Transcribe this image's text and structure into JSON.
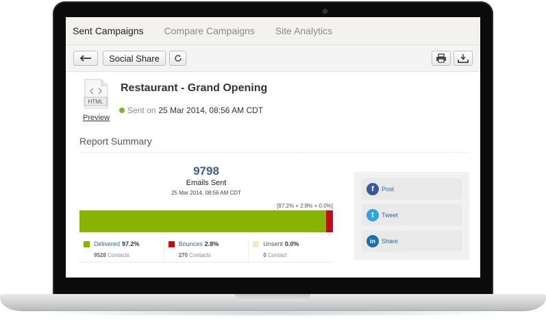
{
  "tabs": [
    {
      "label": "Sent Campaigns",
      "active": true
    },
    {
      "label": "Compare Campaigns",
      "active": false
    },
    {
      "label": "Site Analytics",
      "active": false
    }
  ],
  "toolbar": {
    "back_icon": "back-arrow-icon",
    "social_share_label": "Social Share",
    "refresh_icon": "refresh-icon",
    "print_icon": "printer-icon",
    "download_icon": "download-icon"
  },
  "campaign": {
    "file_icon_label": "HTML",
    "preview_label": "Preview",
    "title": "Restaurant - Grand Opening",
    "status_label": "Sent on",
    "status_color": "#7bb32e",
    "sent_datetime": "25 Mar 2014, 08:56 AM CDT"
  },
  "report": {
    "section_title": "Report Summary",
    "emails_sent_count": "9798",
    "emails_sent_label": "Emails Sent",
    "sent_date_small": "25 Mar 2014, 08:56 AM CDT",
    "percent_summary": "[97.2% + 2.8% + 0.0%]",
    "bar_segments": [
      {
        "name": "delivered",
        "percent": 97.2,
        "color": "#87b400"
      },
      {
        "name": "bounces",
        "percent": 2.8,
        "color": "#c00f14"
      },
      {
        "name": "unsent",
        "percent": 0.0,
        "color": "#f5e7c5"
      }
    ],
    "legend": [
      {
        "label": "Delivered",
        "percent": "97.2%",
        "count": "9528",
        "count_label": "Contacts",
        "color": "#87b400"
      },
      {
        "label": "Bounces",
        "percent": "2.8%",
        "count": "270",
        "count_label": "Contacts",
        "color": "#c00f14"
      },
      {
        "label": "Unsent",
        "percent": "0.0%",
        "count": "0",
        "count_label": "Contact",
        "color": "#f5e7c5"
      }
    ]
  },
  "share": [
    {
      "label": "Post",
      "icon": "facebook-icon",
      "color": "#3b5998",
      "glyph": "f"
    },
    {
      "label": "Tweet",
      "icon": "twitter-icon",
      "color": "#33a3dd",
      "glyph": "t"
    },
    {
      "label": "Share",
      "icon": "linkedin-icon",
      "color": "#1e6ea8",
      "glyph": "in"
    }
  ]
}
